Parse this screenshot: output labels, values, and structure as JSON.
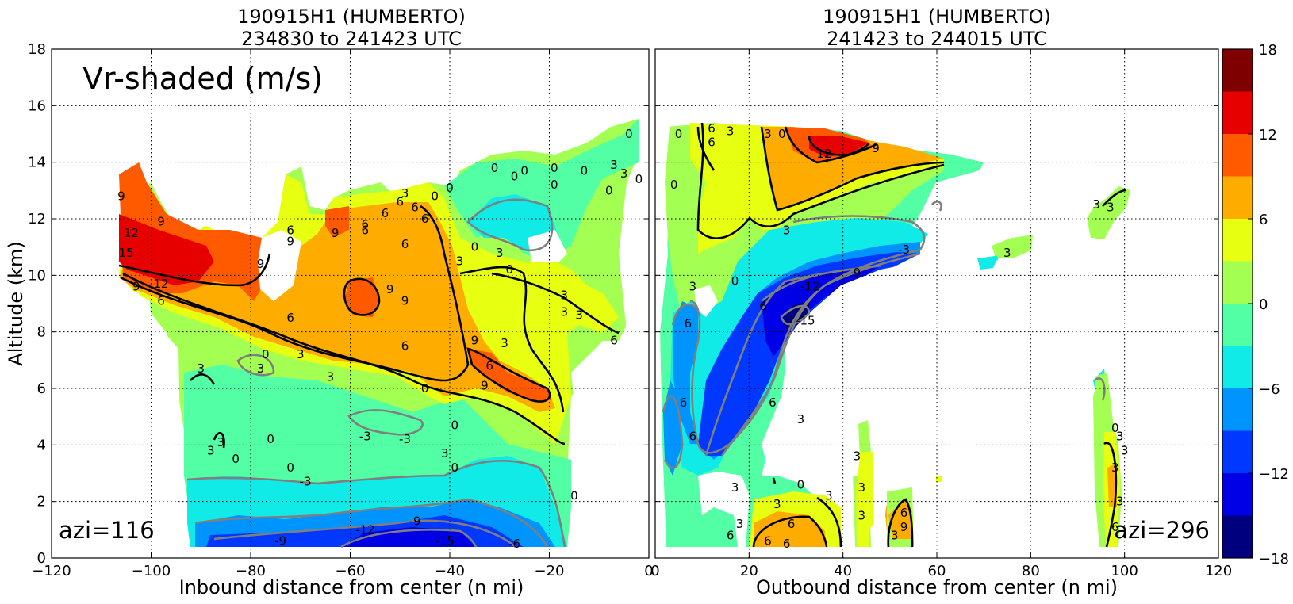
{
  "chart_data": [
    {
      "type": "heatmap",
      "panel": "left",
      "title": [
        "190915H1 (HUMBERTO)",
        "234830 to 241423 UTC"
      ],
      "xlabel": "Inbound distance from center (n mi)",
      "ylabel": "Altitude (km)",
      "xlim": [
        -120,
        0
      ],
      "ylim": [
        0,
        18
      ],
      "xticks": [
        -120,
        -100,
        -80,
        -60,
        -40,
        -20,
        0
      ],
      "yticks": [
        0,
        2,
        4,
        6,
        8,
        10,
        12,
        14,
        16,
        18
      ],
      "grid": true,
      "annotation_large": "Vr-shaded (m/s)",
      "annotation_azi": "azi=116",
      "contour_labels": [
        {
          "x": -106,
          "y": 12.8,
          "v": "9"
        },
        {
          "x": -98,
          "y": 11.9,
          "v": "9"
        },
        {
          "x": -104,
          "y": 11.5,
          "v": "12"
        },
        {
          "x": -105,
          "y": 10.8,
          "v": "15"
        },
        {
          "x": -98,
          "y": 9.7,
          "v": "12"
        },
        {
          "x": -103,
          "y": 9.6,
          "v": "9"
        },
        {
          "x": -98,
          "y": 9.1,
          "v": "6"
        },
        {
          "x": -72,
          "y": 11.6,
          "v": "6"
        },
        {
          "x": -72,
          "y": 11.2,
          "v": "9"
        },
        {
          "x": -78,
          "y": 10.4,
          "v": "9"
        },
        {
          "x": -72,
          "y": 8.5,
          "v": "6"
        },
        {
          "x": -63,
          "y": 11.5,
          "v": "9"
        },
        {
          "x": -57,
          "y": 11.8,
          "v": "6"
        },
        {
          "x": -53,
          "y": 12.2,
          "v": "6"
        },
        {
          "x": -47,
          "y": 12.4,
          "v": "6"
        },
        {
          "x": -45,
          "y": 12.0,
          "v": "6"
        },
        {
          "x": -49,
          "y": 11.1,
          "v": "6"
        },
        {
          "x": -57,
          "y": 11.6,
          "v": "6"
        },
        {
          "x": -49,
          "y": 12.9,
          "v": "3"
        },
        {
          "x": -50,
          "y": 12.6,
          "v": "6"
        },
        {
          "x": -52,
          "y": 9.5,
          "v": "9"
        },
        {
          "x": -49,
          "y": 9.1,
          "v": "9"
        },
        {
          "x": -40,
          "y": 13.1,
          "v": "0"
        },
        {
          "x": -43,
          "y": 12.8,
          "v": "0"
        },
        {
          "x": -38,
          "y": 10.5,
          "v": "3"
        },
        {
          "x": -35,
          "y": 11.0,
          "v": "0"
        },
        {
          "x": -31,
          "y": 13.8,
          "v": "0"
        },
        {
          "x": -27,
          "y": 13.5,
          "v": "0"
        },
        {
          "x": -25,
          "y": 13.7,
          "v": "0"
        },
        {
          "x": -19,
          "y": 13.8,
          "v": "0"
        },
        {
          "x": -19,
          "y": 13.2,
          "v": "0"
        },
        {
          "x": -30,
          "y": 10.8,
          "v": "3"
        },
        {
          "x": -28,
          "y": 10.2,
          "v": "0"
        },
        {
          "x": -17,
          "y": 9.3,
          "v": "3"
        },
        {
          "x": -17,
          "y": 8.7,
          "v": "3"
        },
        {
          "x": -14,
          "y": 8.6,
          "v": "3"
        },
        {
          "x": -13,
          "y": 13.7,
          "v": "0"
        },
        {
          "x": -8,
          "y": 13.0,
          "v": "0"
        },
        {
          "x": -7,
          "y": 13.9,
          "v": "3"
        },
        {
          "x": -5,
          "y": 13.6,
          "v": "3"
        },
        {
          "x": -4,
          "y": 15.0,
          "v": "0"
        },
        {
          "x": -2,
          "y": 13.4,
          "v": "0"
        },
        {
          "x": -7,
          "y": 7.7,
          "v": "6"
        },
        {
          "x": -29,
          "y": 7.6,
          "v": "3"
        },
        {
          "x": -35,
          "y": 7.7,
          "v": "9"
        },
        {
          "x": -32,
          "y": 6.8,
          "v": "6"
        },
        {
          "x": -33,
          "y": 6.1,
          "v": "9"
        },
        {
          "x": -49,
          "y": 7.5,
          "v": "6"
        },
        {
          "x": -45,
          "y": 6.0,
          "v": "0"
        },
        {
          "x": -70,
          "y": 7.2,
          "v": "3"
        },
        {
          "x": -64,
          "y": 6.4,
          "v": "3"
        },
        {
          "x": -77,
          "y": 7.2,
          "v": "0"
        },
        {
          "x": -78,
          "y": 6.7,
          "v": "3"
        },
        {
          "x": -90,
          "y": 6.7,
          "v": "3"
        },
        {
          "x": -86,
          "y": 4.1,
          "v": "3"
        },
        {
          "x": -88,
          "y": 3.8,
          "v": "3"
        },
        {
          "x": -83,
          "y": 3.5,
          "v": "0"
        },
        {
          "x": -76,
          "y": 4.2,
          "v": "0"
        },
        {
          "x": -72,
          "y": 3.2,
          "v": "0"
        },
        {
          "x": -69,
          "y": 2.7,
          "v": "-3"
        },
        {
          "x": -57,
          "y": 4.3,
          "v": "-3"
        },
        {
          "x": -49,
          "y": 4.2,
          "v": "-3"
        },
        {
          "x": -39,
          "y": 4.7,
          "v": "0"
        },
        {
          "x": -41,
          "y": 3.7,
          "v": "3"
        },
        {
          "x": -39,
          "y": 3.2,
          "v": "0"
        },
        {
          "x": -15,
          "y": 2.2,
          "v": "0"
        },
        {
          "x": -57,
          "y": 1.0,
          "v": "-12"
        },
        {
          "x": -47,
          "y": 1.3,
          "v": "-9"
        },
        {
          "x": -41,
          "y": 0.6,
          "v": "-15"
        },
        {
          "x": -27,
          "y": 0.5,
          "v": "-6"
        },
        {
          "x": -74,
          "y": 0.6,
          "v": "-9"
        }
      ]
    },
    {
      "type": "heatmap",
      "panel": "right",
      "title": [
        "190915H1 (HUMBERTO)",
        "241423 to 244015 UTC"
      ],
      "xlabel": "Outbound distance from center (n mi)",
      "ylabel": "",
      "xlim": [
        0,
        120
      ],
      "ylim": [
        0,
        18
      ],
      "xticks": [
        0,
        20,
        40,
        60,
        80,
        100,
        120
      ],
      "grid": true,
      "annotation_azi": "azi=296",
      "contour_labels": [
        {
          "x": 5,
          "y": 15.0,
          "v": "0"
        },
        {
          "x": 12,
          "y": 15.2,
          "v": "6"
        },
        {
          "x": 12,
          "y": 14.7,
          "v": "6"
        },
        {
          "x": 16,
          "y": 15.1,
          "v": "3"
        },
        {
          "x": 24,
          "y": 15.0,
          "v": "3"
        },
        {
          "x": 27,
          "y": 15.0,
          "v": "0"
        },
        {
          "x": 4,
          "y": 13.2,
          "v": "0"
        },
        {
          "x": 36,
          "y": 14.3,
          "v": "12"
        },
        {
          "x": 47,
          "y": 14.5,
          "v": "9"
        },
        {
          "x": 28,
          "y": 11.6,
          "v": "3"
        },
        {
          "x": 53,
          "y": 10.9,
          "v": "-3"
        },
        {
          "x": 43,
          "y": 10.1,
          "v": "9"
        },
        {
          "x": 33,
          "y": 9.6,
          "v": "-12"
        },
        {
          "x": 32,
          "y": 8.4,
          "v": "-15"
        },
        {
          "x": 23,
          "y": 8.9,
          "v": "6"
        },
        {
          "x": 17,
          "y": 9.8,
          "v": "0"
        },
        {
          "x": 8,
          "y": 9.6,
          "v": "3"
        },
        {
          "x": 7,
          "y": 8.3,
          "v": "6"
        },
        {
          "x": 6,
          "y": 5.5,
          "v": "6"
        },
        {
          "x": 8,
          "y": 4.3,
          "v": "6"
        },
        {
          "x": 25,
          "y": 5.5,
          "v": "6"
        },
        {
          "x": 31,
          "y": 4.9,
          "v": "3"
        },
        {
          "x": 17,
          "y": 2.5,
          "v": "3"
        },
        {
          "x": 26,
          "y": 1.9,
          "v": "3"
        },
        {
          "x": 31,
          "y": 2.6,
          "v": "0"
        },
        {
          "x": 37,
          "y": 2.2,
          "v": "3"
        },
        {
          "x": 29,
          "y": 1.2,
          "v": "6"
        },
        {
          "x": 18,
          "y": 1.2,
          "v": "3"
        },
        {
          "x": 16,
          "y": 0.8,
          "v": "6"
        },
        {
          "x": 24,
          "y": 0.6,
          "v": "6"
        },
        {
          "x": 28,
          "y": 0.5,
          "v": "6"
        },
        {
          "x": 43,
          "y": 3.6,
          "v": "3"
        },
        {
          "x": 44,
          "y": 2.5,
          "v": "3"
        },
        {
          "x": 44,
          "y": 1.5,
          "v": "3"
        },
        {
          "x": 53,
          "y": 1.6,
          "v": "6"
        },
        {
          "x": 53,
          "y": 1.1,
          "v": "9"
        },
        {
          "x": 51,
          "y": 0.8,
          "v": "3"
        },
        {
          "x": 75,
          "y": 10.8,
          "v": "3"
        },
        {
          "x": 94,
          "y": 12.5,
          "v": "3"
        },
        {
          "x": 97,
          "y": 12.4,
          "v": "3"
        },
        {
          "x": 98,
          "y": 4.6,
          "v": "0"
        },
        {
          "x": 99,
          "y": 4.3,
          "v": "3"
        },
        {
          "x": 100,
          "y": 3.8,
          "v": "3"
        },
        {
          "x": 98,
          "y": 3.2,
          "v": "3"
        },
        {
          "x": 99,
          "y": 2.0,
          "v": "3"
        },
        {
          "x": 98,
          "y": 1.1,
          "v": "6"
        }
      ]
    },
    {
      "type": "colorbar",
      "boundaries": [
        -18,
        -15,
        -12,
        -9,
        -6,
        -3,
        0,
        3,
        6,
        9,
        12,
        15,
        18
      ],
      "ticks": [
        -18,
        -12,
        -6,
        0,
        6,
        12,
        18
      ],
      "colors": [
        "#00007f",
        "#0000e6",
        "#0038ff",
        "#0094ff",
        "#10ebe7",
        "#53ffa4",
        "#a4ff53",
        "#e7ff10",
        "#ffac00",
        "#ff5a00",
        "#e60000",
        "#7f0000"
      ]
    }
  ]
}
